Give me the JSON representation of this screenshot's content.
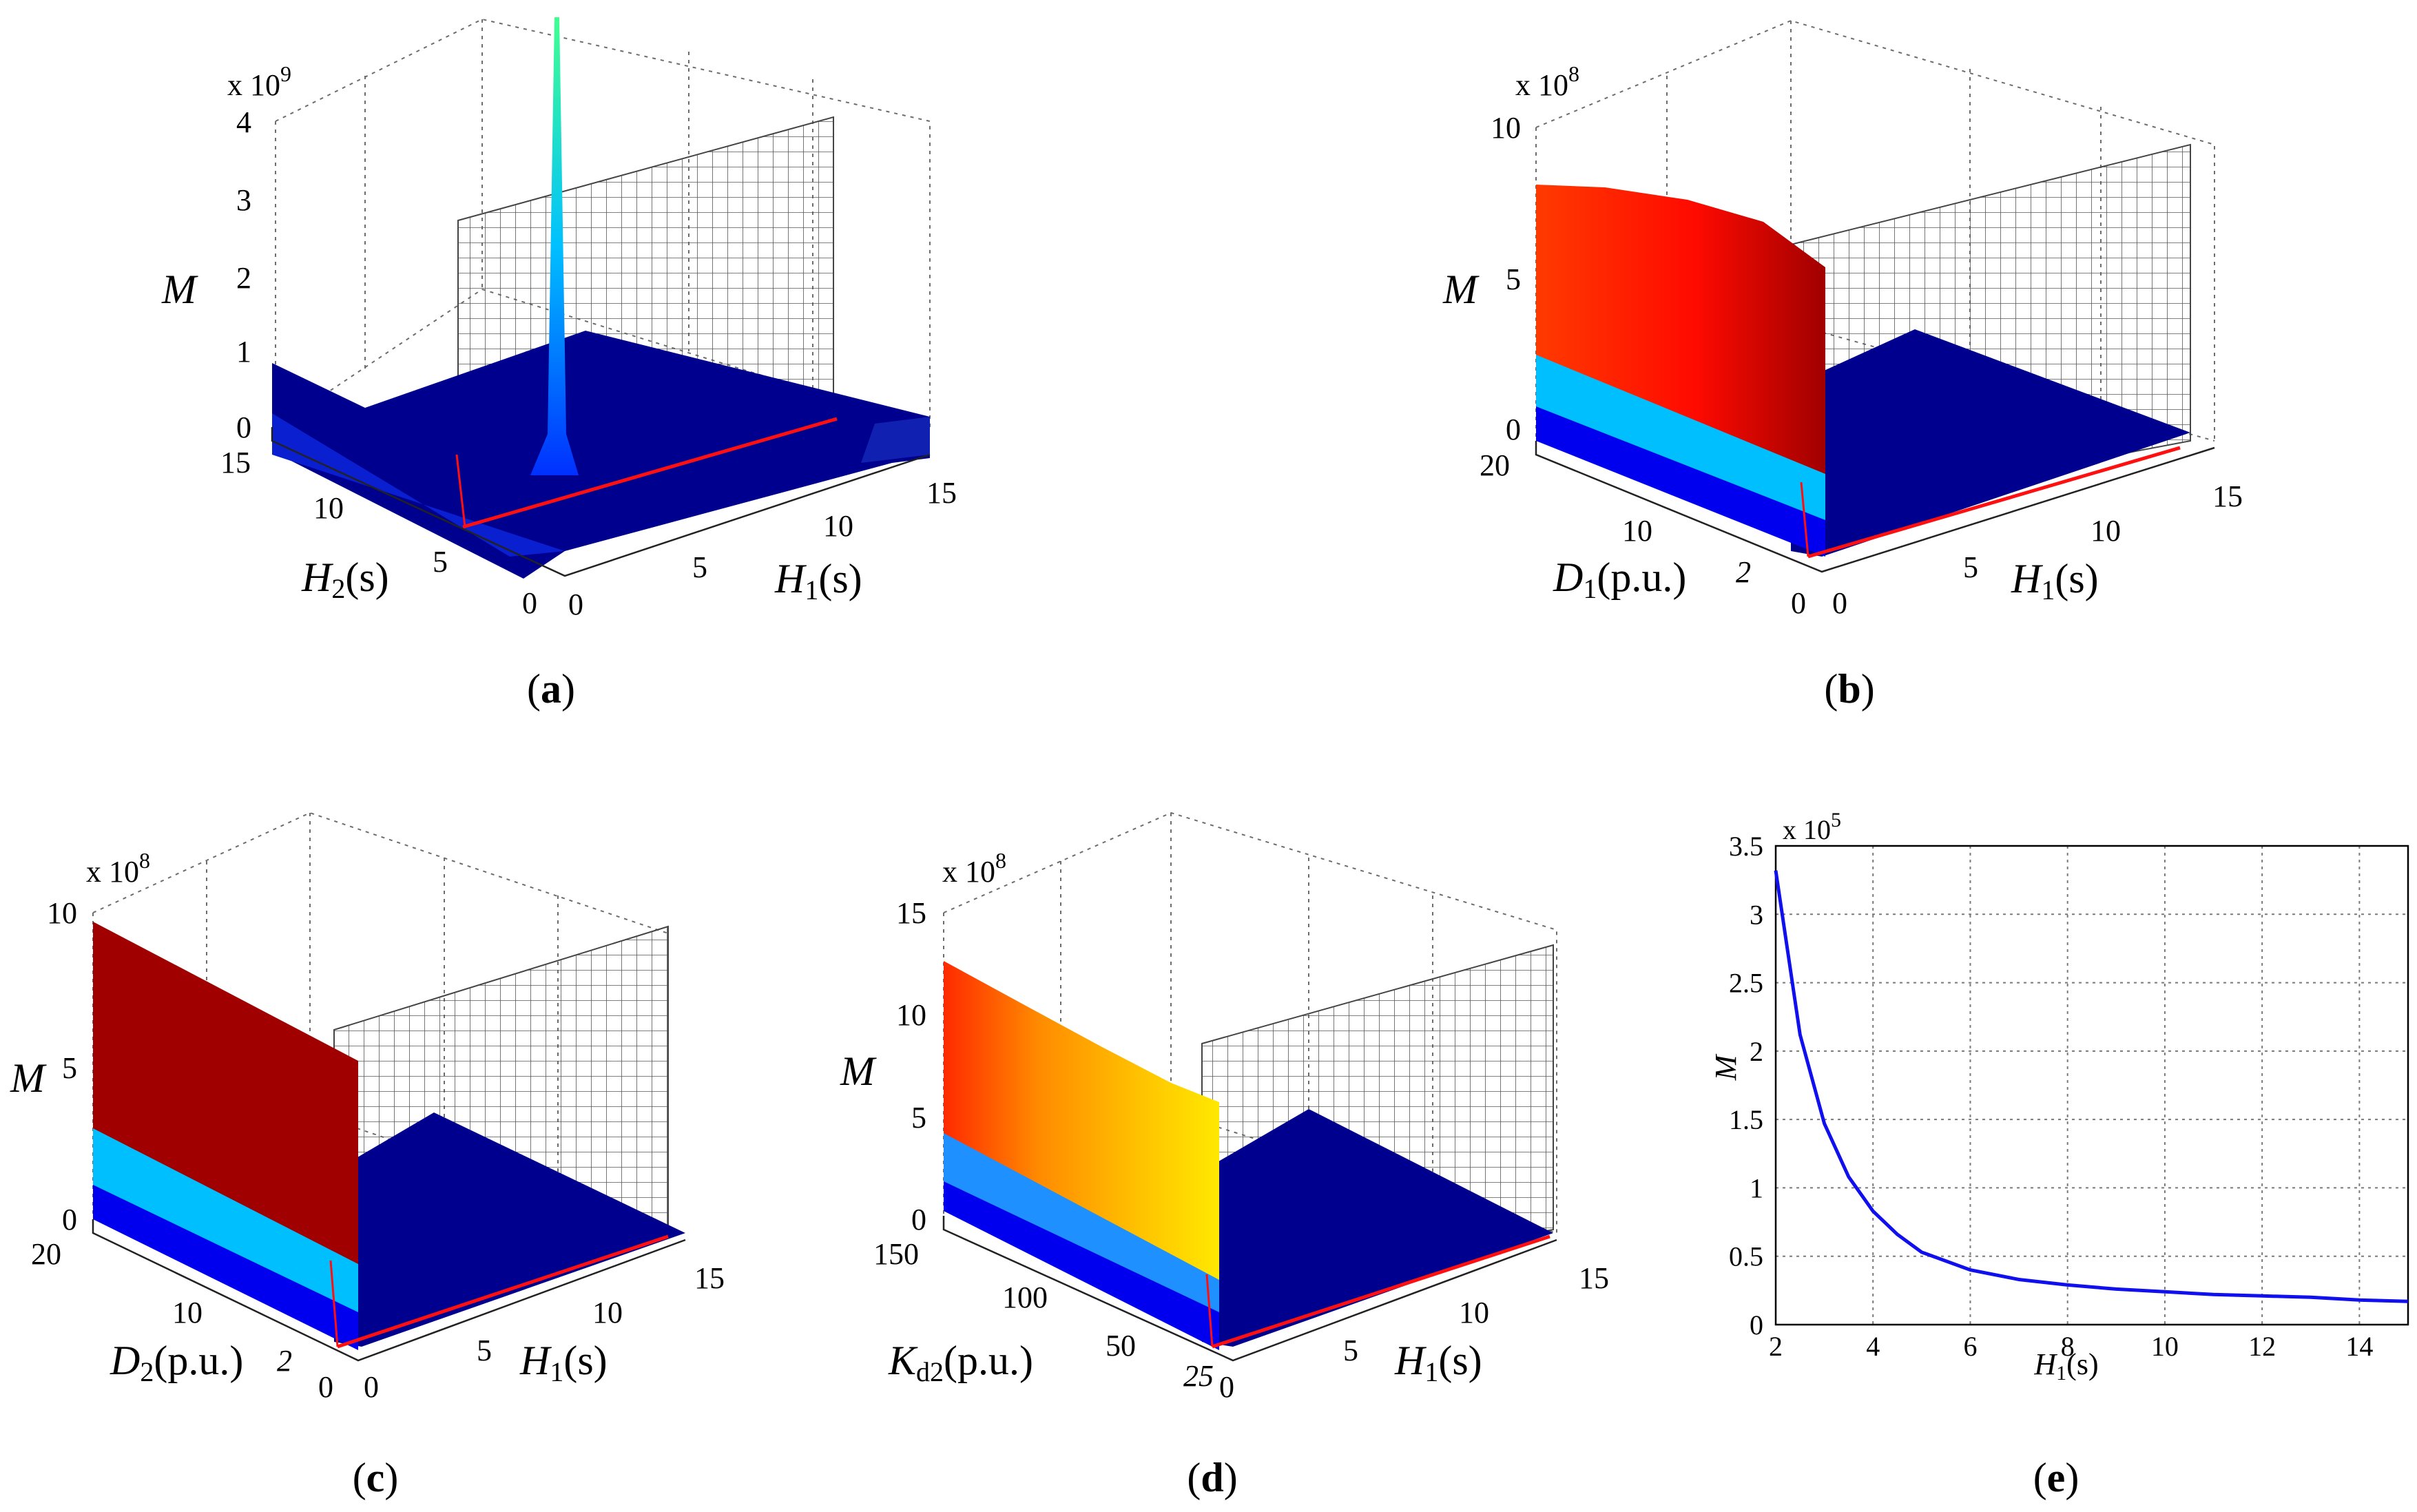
{
  "figure": {
    "panels": [
      {
        "caption_letter": "a",
        "z_multiplier": "x 10",
        "z_exp": "9"
      },
      {
        "caption_letter": "b",
        "z_multiplier": "x 10",
        "z_exp": "8"
      },
      {
        "caption_letter": "c",
        "z_multiplier": "x 10",
        "z_exp": "8"
      },
      {
        "caption_letter": "d",
        "z_multiplier": "x 10",
        "z_exp": "8"
      },
      {
        "caption_letter": "e",
        "z_multiplier": "x 10",
        "z_exp": "5"
      }
    ]
  },
  "chart_data": [
    {
      "id": "a",
      "type": "surface3d",
      "zlabel": "M",
      "z_ticks": [
        "4",
        "3",
        "2",
        "1",
        "0"
      ],
      "ylabel_sym": "H",
      "ylabel_sub": "2",
      "ylabel_unit": "(s)",
      "y_ticks": [
        "15",
        "10",
        "5",
        "0"
      ],
      "xlabel_sym": "H",
      "xlabel_sub": "1",
      "xlabel_unit": "(s)",
      "x_ticks": [
        "0",
        "5",
        "10",
        "15"
      ],
      "zlim": [
        0,
        4000000000.0
      ],
      "xlim": [
        0,
        15
      ],
      "ylim": [
        0,
        15
      ]
    },
    {
      "id": "b",
      "type": "surface3d",
      "zlabel": "M",
      "z_ticks": [
        "10",
        "5",
        "0"
      ],
      "ylabel_sym": "D",
      "ylabel_sub": "1",
      "ylabel_unit": "(p.u.)",
      "y_ticks": [
        "20",
        "10",
        "2",
        "0"
      ],
      "xlabel_sym": "H",
      "xlabel_sub": "1",
      "xlabel_unit": "(s)",
      "x_ticks": [
        "0",
        "5",
        "10",
        "15"
      ],
      "zlim": [
        0,
        1000000000.0
      ],
      "xlim": [
        0,
        15
      ],
      "ylim": [
        0,
        20
      ]
    },
    {
      "id": "c",
      "type": "surface3d",
      "zlabel": "M",
      "z_ticks": [
        "10",
        "5",
        "0"
      ],
      "ylabel_sym": "D",
      "ylabel_sub": "2",
      "ylabel_unit": "(p.u.)",
      "y_ticks": [
        "20",
        "10",
        "2",
        "0"
      ],
      "xlabel_sym": "H",
      "xlabel_sub": "1",
      "xlabel_unit": "(s)",
      "x_ticks": [
        "0",
        "5",
        "10",
        "15"
      ],
      "zlim": [
        0,
        1000000000.0
      ],
      "xlim": [
        0,
        15
      ],
      "ylim": [
        0,
        20
      ]
    },
    {
      "id": "d",
      "type": "surface3d",
      "zlabel": "M",
      "z_ticks": [
        "15",
        "10",
        "5",
        "0"
      ],
      "ylabel_sym": "K",
      "ylabel_sub": "d2",
      "ylabel_unit": "(p.u.)",
      "y_ticks": [
        "150",
        "100",
        "50",
        "25"
      ],
      "xlabel_sym": "H",
      "xlabel_sub": "1",
      "xlabel_unit": "(s)",
      "x_ticks": [
        "0",
        "5",
        "10",
        "15"
      ],
      "zlim": [
        0,
        1500000000.0
      ],
      "xlim": [
        0,
        15
      ],
      "ylim": [
        25,
        150
      ]
    },
    {
      "id": "e",
      "type": "line",
      "ylabel": "M",
      "xlabel_sym": "H",
      "xlabel_sub": "1",
      "xlabel_unit": "(s)",
      "xlim": [
        2,
        15
      ],
      "ylim": [
        0,
        3.5
      ],
      "x_ticks": [
        "2",
        "4",
        "6",
        "8",
        "10",
        "12",
        "14"
      ],
      "y_ticks": [
        "0",
        "0.5",
        "1",
        "1.5",
        "2",
        "2.5",
        "3",
        "3.5"
      ],
      "grid": true,
      "series": [
        {
          "name": "M",
          "color": "#1010ee",
          "x": [
            2,
            2.5,
            3,
            3.5,
            4,
            4.5,
            5,
            6,
            7,
            8,
            9,
            10,
            11,
            12,
            13,
            14,
            15
          ],
          "y": [
            3.32,
            2.12,
            1.47,
            1.08,
            0.83,
            0.66,
            0.53,
            0.4,
            0.33,
            0.29,
            0.26,
            0.24,
            0.22,
            0.21,
            0.2,
            0.18,
            0.17
          ]
        }
      ]
    }
  ],
  "colors": {
    "surface_blue": "#00008f",
    "mid_blue": "#0000ff",
    "light_blue": "#00bfff",
    "red": "#ff2200",
    "dark_red": "#a00000",
    "orange": "#ff9900",
    "yellow": "#ffe000",
    "line_red": "#ff1010"
  }
}
